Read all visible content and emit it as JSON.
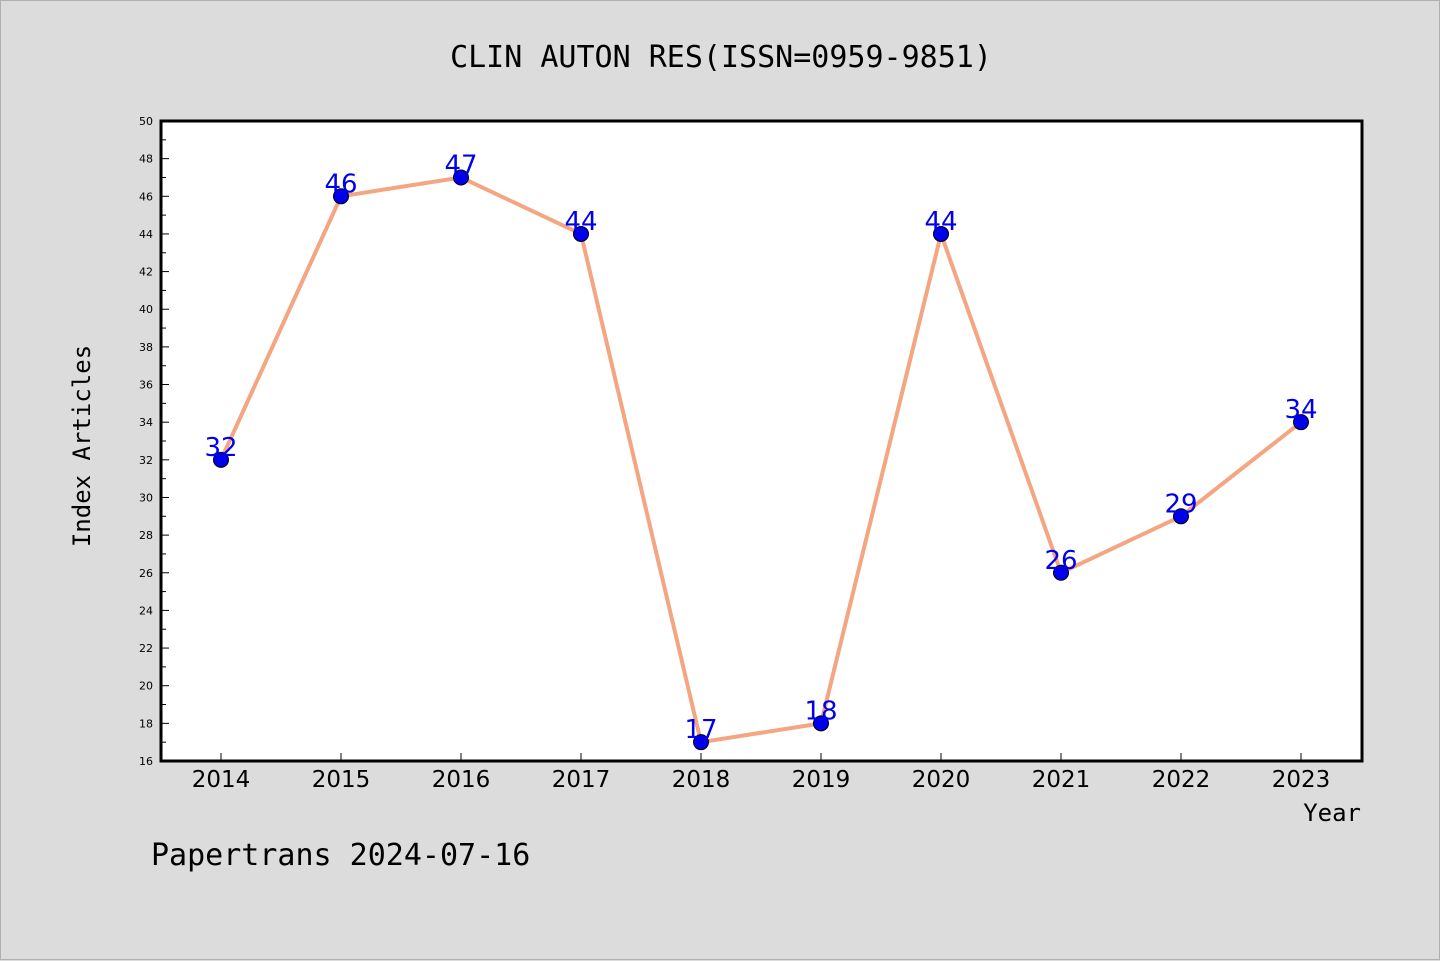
{
  "footer": "Papertrans 2024-07-16",
  "chart_data": {
    "type": "line",
    "title": "CLIN AUTON RES(ISSN=0959-9851)",
    "xlabel": "Year",
    "ylabel": "Index Articles",
    "categories": [
      "2014",
      "2015",
      "2016",
      "2017",
      "2018",
      "2019",
      "2020",
      "2021",
      "2022",
      "2023"
    ],
    "values": [
      32,
      46,
      47,
      44,
      17,
      18,
      44,
      26,
      29,
      34
    ],
    "ylim": [
      16,
      50
    ],
    "yticks": [
      "16",
      "18",
      "20",
      "22",
      "24",
      "26",
      "28",
      "30",
      "32",
      "34",
      "36",
      "38",
      "40",
      "42",
      "44",
      "46",
      "48",
      "50"
    ],
    "grid": false,
    "legend": "none",
    "colors": {
      "line": "#f4a582",
      "marker": "#0000ee",
      "label": "#0000ee",
      "background": "#dcdcdc",
      "plot_background": "#ffffff"
    }
  }
}
